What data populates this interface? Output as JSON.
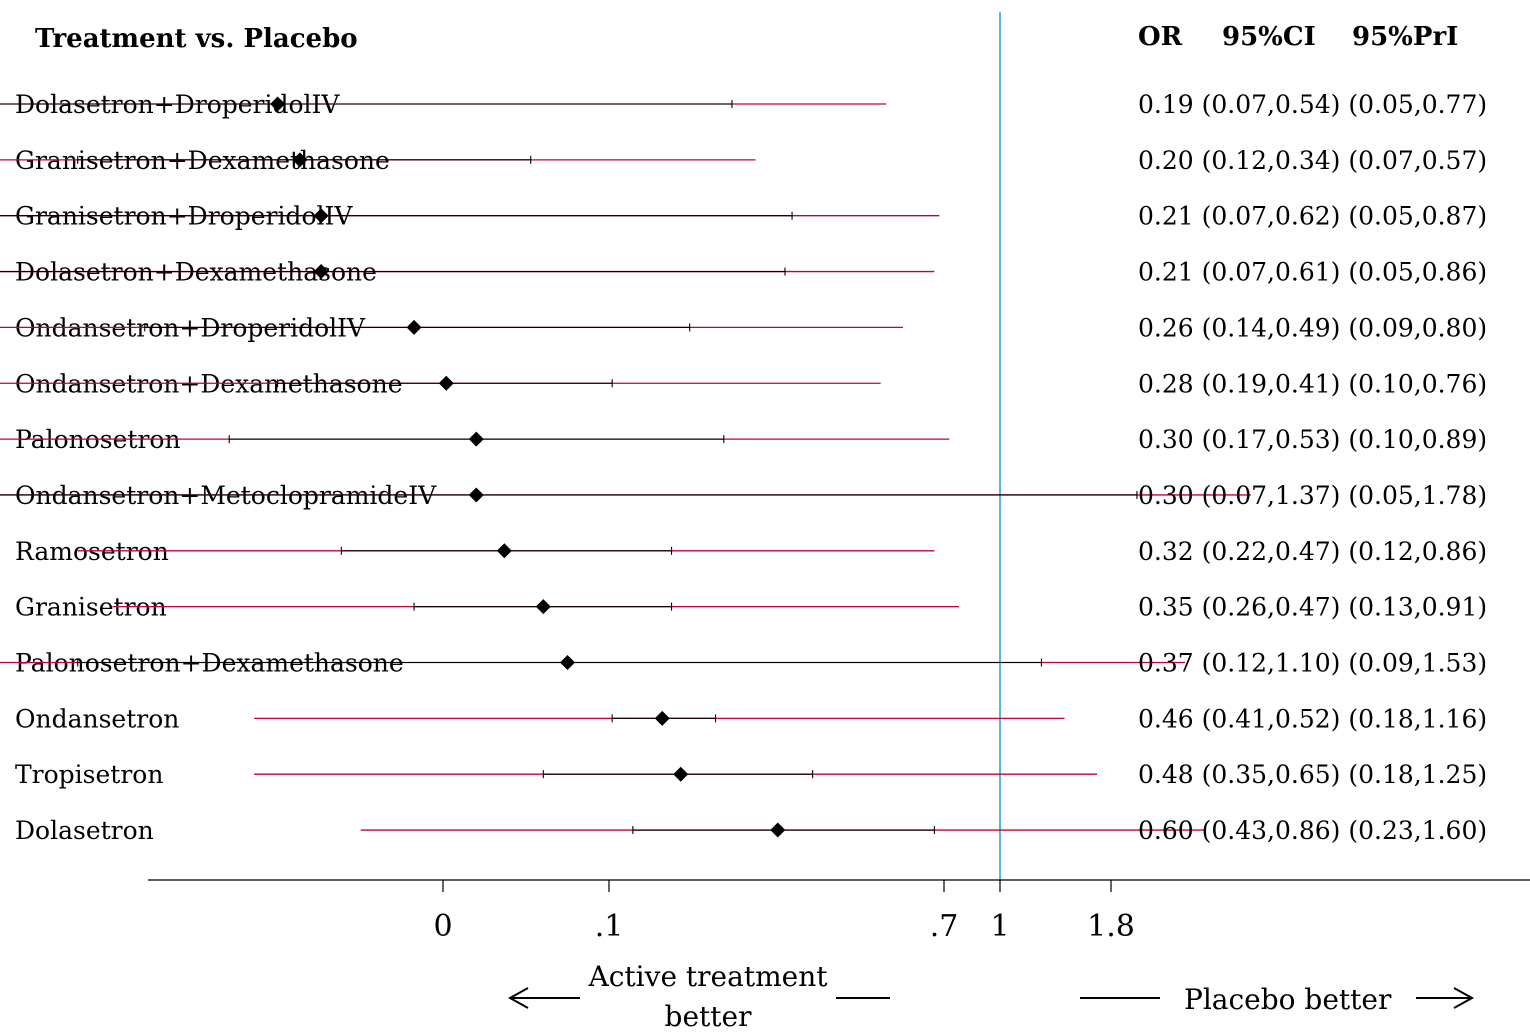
{
  "header": {
    "title": "Treatment vs. Placebo",
    "col_or": "OR",
    "col_ci": "95%CI",
    "col_pri": "95%PrI"
  },
  "colors": {
    "ci_line": "#000000",
    "pri_line": "#c0003a",
    "reference_line": "#1f9fd8",
    "marker": "#000000"
  },
  "chart_data": {
    "type": "forest",
    "xscale": "log",
    "reference_value": 1,
    "xticks": [
      "0",
      ".1",
      ".7",
      "1",
      "1.8"
    ],
    "rows": [
      {
        "label": "Dolasetron+DroperidolIV",
        "or": 0.19,
        "ci": [
          0.07,
          0.54
        ],
        "pri": [
          0.05,
          0.77
        ],
        "text": "0.19 (0.07,0.54)  (0.05,0.77)"
      },
      {
        "label": "Granisetron+Dexamethasone",
        "or": 0.2,
        "ci": [
          0.12,
          0.34
        ],
        "pri": [
          0.07,
          0.57
        ],
        "text": "0.20 (0.12,0.34)  (0.07,0.57)"
      },
      {
        "label": "Granisetron+DroperidolIV",
        "or": 0.21,
        "ci": [
          0.07,
          0.62
        ],
        "pri": [
          0.05,
          0.87
        ],
        "text": "0.21 (0.07,0.62)  (0.05,0.87)"
      },
      {
        "label": "Dolasetron+Dexamethasone",
        "or": 0.21,
        "ci": [
          0.07,
          0.61
        ],
        "pri": [
          0.05,
          0.86
        ],
        "text": "0.21 (0.07,0.61)  (0.05,0.86)"
      },
      {
        "label": "Ondansetron+DroperidolIV",
        "or": 0.26,
        "ci": [
          0.14,
          0.49
        ],
        "pri": [
          0.09,
          0.8
        ],
        "text": "0.26 (0.14,0.49)  (0.09,0.80)"
      },
      {
        "label": "Ondansetron+Dexamethasone",
        "or": 0.28,
        "ci": [
          0.19,
          0.41
        ],
        "pri": [
          0.1,
          0.76
        ],
        "text": "0.28 (0.19,0.41)  (0.10,0.76)"
      },
      {
        "label": "Palonosetron",
        "or": 0.3,
        "ci": [
          0.17,
          0.53
        ],
        "pri": [
          0.1,
          0.89
        ],
        "text": "0.30 (0.17,0.53)  (0.10,0.89)"
      },
      {
        "label": "Ondansetron+MetoclopramideIV",
        "or": 0.3,
        "ci": [
          0.07,
          1.37
        ],
        "pri": [
          0.05,
          1.78
        ],
        "text": "0.30 (0.07,1.37)  (0.05,1.78)"
      },
      {
        "label": "Ramosetron",
        "or": 0.32,
        "ci": [
          0.22,
          0.47
        ],
        "pri": [
          0.12,
          0.86
        ],
        "text": "0.32 (0.22,0.47)  (0.12,0.86)"
      },
      {
        "label": "Granisetron",
        "or": 0.35,
        "ci": [
          0.26,
          0.47
        ],
        "pri": [
          0.13,
          0.91
        ],
        "text": "0.35 (0.26,0.47)  (0.13,0.91)"
      },
      {
        "label": "Palonosetron+Dexamethasone",
        "or": 0.37,
        "ci": [
          0.12,
          1.1
        ],
        "pri": [
          0.09,
          1.53
        ],
        "text": "0.37 (0.12,1.10)  (0.09,1.53)"
      },
      {
        "label": "Ondansetron",
        "or": 0.46,
        "ci": [
          0.41,
          0.52
        ],
        "pri": [
          0.18,
          1.16
        ],
        "text": "0.46 (0.41,0.52)  (0.18,1.16)"
      },
      {
        "label": "Tropisetron",
        "or": 0.48,
        "ci": [
          0.35,
          0.65
        ],
        "pri": [
          0.18,
          1.25
        ],
        "text": "0.48 (0.35,0.65)  (0.18,1.25)"
      },
      {
        "label": "Dolasetron",
        "or": 0.6,
        "ci": [
          0.43,
          0.86
        ],
        "pri": [
          0.23,
          1.6
        ],
        "text": "0.60 (0.43,0.86)  (0.23,1.60)"
      }
    ]
  },
  "footer": {
    "left_line1": "Active treatment",
    "left_line2": "better",
    "right": "Placebo better"
  }
}
